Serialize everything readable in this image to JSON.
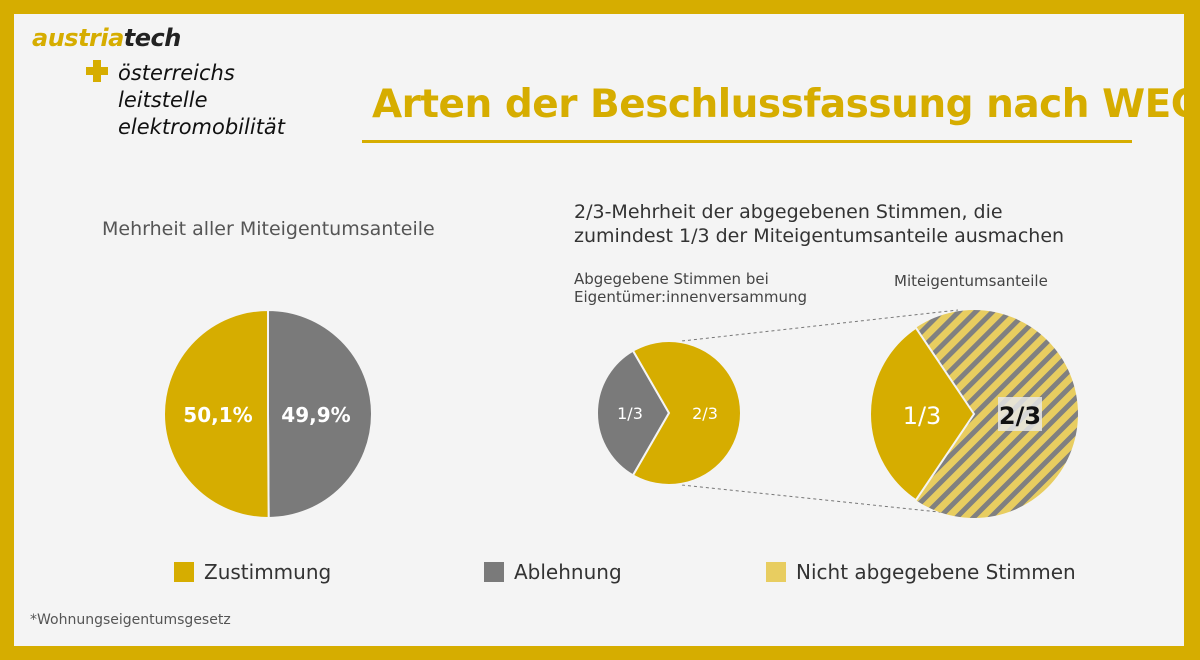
{
  "brand": {
    "austria": "austria",
    "tech": "tech",
    "line1": "österreichs",
    "line2": "leitstelle",
    "line3": "elektromobilität"
  },
  "title": "Arten der Beschlussfassung nach WEG*",
  "left_heading": "Mehrheit aller Miteigentumsanteile",
  "right_heading_line1": "2/3-Mehrheit der abgegebenen Stimmen, die",
  "right_heading_line2": "zumindest 1/3 der Miteigentumsanteile ausmachen",
  "sub_votes_line1": "Abgegebene Stimmen bei",
  "sub_votes_line2": "Eigentümer:innenversammung",
  "sub_shares": "Miteigentumsanteile",
  "legend": [
    {
      "label": "Zustimmung",
      "color": "#d6ad00"
    },
    {
      "label": "Ablehnung",
      "color": "#7a7a7a"
    },
    {
      "label": "Nicht abgegebene Stimmen",
      "color": "#e8cd60"
    }
  ],
  "footnote": "*Wohnungseigentumsgesetz",
  "colors": {
    "yes": "#d6ad00",
    "no": "#7a7a7a",
    "not_cast": "#e8cd60",
    "stripe": "#808080"
  },
  "chart_data": [
    {
      "type": "pie",
      "categories": [
        "Zustimmung",
        "Ablehnung"
      ],
      "values": [
        50.1,
        49.9
      ],
      "labels": [
        "50,1%",
        "49,9%"
      ]
    },
    {
      "type": "pie",
      "categories": [
        "Ablehnung",
        "Zustimmung"
      ],
      "values": [
        0.3333,
        0.6667
      ],
      "labels": [
        "1/3",
        "2/3"
      ]
    },
    {
      "type": "pie",
      "categories": [
        "Abgegebene Stimmen",
        "Nicht abgegebene Stimmen"
      ],
      "values": [
        0.3333,
        0.6667
      ],
      "labels": [
        "1/3",
        "2/3"
      ]
    }
  ]
}
